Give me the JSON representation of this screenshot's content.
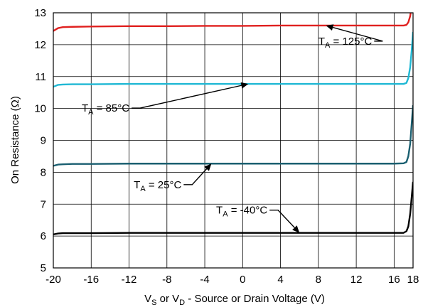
{
  "chart_data": {
    "type": "line",
    "xlabel": {
      "main": "V",
      "sub1": "S",
      "mid": " or V",
      "sub2": "D",
      "rest": " - Source or Drain Voltage (V)"
    },
    "ylabel": "On Resistance (Ω)",
    "xlim": [
      -20,
      18
    ],
    "ylim": [
      5,
      13
    ],
    "x_ticks": [
      -20,
      -16,
      -12,
      -8,
      -4,
      0,
      4,
      8,
      12,
      16,
      18
    ],
    "y_ticks": [
      5,
      6,
      7,
      8,
      9,
      10,
      11,
      12,
      13
    ],
    "grid": true,
    "series": [
      {
        "name": "T_A = 125°C",
        "label": {
          "main": "T",
          "sub": "A",
          "rest": " = 125°C"
        },
        "color": "#e0201f",
        "x": [
          -20,
          -19.5,
          -19,
          -18,
          -16,
          -12,
          -8,
          -4,
          0,
          4,
          8,
          12,
          16,
          17,
          17.3,
          17.5,
          17.7,
          17.85,
          18
        ],
        "y": [
          12.43,
          12.52,
          12.55,
          12.56,
          12.57,
          12.58,
          12.58,
          12.59,
          12.59,
          12.6,
          12.6,
          12.6,
          12.6,
          12.6,
          12.62,
          12.7,
          12.9,
          13.2,
          13.6
        ]
      },
      {
        "name": "T_A = 85°C",
        "label": {
          "main": "T",
          "sub": "A",
          "rest": " = 85°C"
        },
        "color": "#1fb8d4",
        "x": [
          -20,
          -19.5,
          -19,
          -18,
          -16,
          -12,
          -8,
          -4,
          0,
          4,
          8,
          12,
          16,
          17,
          17.3,
          17.5,
          17.7,
          17.85,
          18
        ],
        "y": [
          10.68,
          10.74,
          10.75,
          10.76,
          10.76,
          10.77,
          10.77,
          10.77,
          10.77,
          10.77,
          10.77,
          10.77,
          10.77,
          10.77,
          10.8,
          10.95,
          11.3,
          11.8,
          12.4
        ]
      },
      {
        "name": "T_A = 25°C",
        "label": {
          "main": "T",
          "sub": "A",
          "rest": " = 25°C"
        },
        "color": "#1a5f70",
        "x": [
          -20,
          -19.5,
          -19,
          -18,
          -16,
          -12,
          -8,
          -4,
          0,
          4,
          8,
          12,
          16,
          17,
          17.3,
          17.5,
          17.7,
          17.85,
          18
        ],
        "y": [
          8.2,
          8.24,
          8.25,
          8.26,
          8.26,
          8.27,
          8.27,
          8.27,
          8.27,
          8.27,
          8.27,
          8.27,
          8.27,
          8.28,
          8.32,
          8.5,
          8.9,
          9.5,
          10.1
        ]
      },
      {
        "name": "T_A = -40°C",
        "label": {
          "main": "T",
          "sub": "A",
          "rest": " = -40°C"
        },
        "color": "#000000",
        "x": [
          -20,
          -19.5,
          -19,
          -18,
          -16,
          -12,
          -8,
          -4,
          0,
          4,
          8,
          12,
          16,
          17,
          17.3,
          17.5,
          17.7,
          17.85,
          18
        ],
        "y": [
          6.05,
          6.08,
          6.09,
          6.09,
          6.09,
          6.1,
          6.1,
          6.1,
          6.1,
          6.1,
          6.1,
          6.1,
          6.1,
          6.1,
          6.15,
          6.3,
          6.7,
          7.2,
          7.7
        ]
      }
    ],
    "annotations": [
      {
        "series": 0,
        "text_x": 8,
        "text_y": 12.0,
        "arrow_x": 8.8,
        "arrow_y": 12.6
      },
      {
        "series": 1,
        "text_x": -17,
        "text_y": 9.9,
        "arrow_x": 0.6,
        "arrow_y": 10.77
      },
      {
        "series": 2,
        "text_x": -11.5,
        "text_y": 7.5,
        "arrow_x": -3.3,
        "arrow_y": 8.27
      },
      {
        "series": 3,
        "text_x": -2.8,
        "text_y": 6.7,
        "arrow_x": 6,
        "arrow_y": 6.1
      }
    ]
  }
}
